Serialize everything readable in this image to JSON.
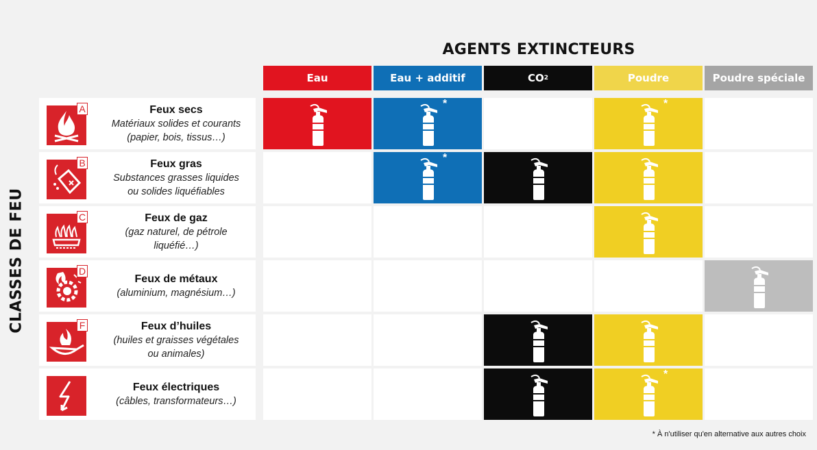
{
  "title": "AGENTS EXTINCTEURS",
  "side_label": "CLASSES DE FEU",
  "agents": [
    {
      "label": "Eau",
      "color": "#e1141f"
    },
    {
      "label": "Eau + additif",
      "color": "#0f6fb6"
    },
    {
      "label": "CO",
      "sub": "2",
      "color": "#0c0c0c"
    },
    {
      "label": "Poudre",
      "color": "#f0d54a"
    },
    {
      "label": "Poudre spéciale",
      "color": "#a5a5a5"
    }
  ],
  "classes": [
    {
      "letter": "A",
      "name": "Feux secs",
      "desc1": "Matériaux solides et courants",
      "desc2": "(papier, bois, tissus…)",
      "icon": "fire-icon",
      "cells": [
        {
          "on": true,
          "color": "#e1141f"
        },
        {
          "on": true,
          "color": "#0f6fb6",
          "note": "*"
        },
        {
          "on": false
        },
        {
          "on": true,
          "color": "#f0cf23",
          "note": "*"
        },
        {
          "on": false
        }
      ]
    },
    {
      "letter": "B",
      "name": "Feux gras",
      "desc1": "Substances grasses liquides",
      "desc2": "ou solides liquéfiables",
      "icon": "fuel-can-icon",
      "cells": [
        {
          "on": false
        },
        {
          "on": true,
          "color": "#0f6fb6",
          "note": "*"
        },
        {
          "on": true,
          "color": "#0c0c0c"
        },
        {
          "on": true,
          "color": "#f0cf23"
        },
        {
          "on": false
        }
      ]
    },
    {
      "letter": "C",
      "name": "Feux de gaz",
      "desc1": "(gaz naturel, de pétrole",
      "desc2": "liquéfié…)",
      "icon": "gas-burner-icon",
      "cells": [
        {
          "on": false
        },
        {
          "on": false
        },
        {
          "on": false
        },
        {
          "on": true,
          "color": "#f0cf23"
        },
        {
          "on": false
        }
      ]
    },
    {
      "letter": "D",
      "name": "Feux de métaux",
      "desc1": "(aluminium, magnésium…)",
      "desc2": "",
      "icon": "metal-fire-icon",
      "cells": [
        {
          "on": false
        },
        {
          "on": false
        },
        {
          "on": false
        },
        {
          "on": false
        },
        {
          "on": true,
          "color": "#bdbdbd"
        }
      ]
    },
    {
      "letter": "F",
      "name": "Feux d’huiles",
      "desc1": "(huiles et graisses végétales",
      "desc2": "ou animales)",
      "icon": "frying-pan-icon",
      "cells": [
        {
          "on": false
        },
        {
          "on": false
        },
        {
          "on": true,
          "color": "#0c0c0c"
        },
        {
          "on": true,
          "color": "#f0cf23"
        },
        {
          "on": false
        }
      ]
    },
    {
      "letter": "",
      "name": "Feux électriques",
      "desc1": "(câbles, transformateurs…)",
      "desc2": "",
      "icon": "lightning-icon",
      "cells": [
        {
          "on": false
        },
        {
          "on": false
        },
        {
          "on": true,
          "color": "#0c0c0c"
        },
        {
          "on": true,
          "color": "#f0cf23",
          "note": "*"
        },
        {
          "on": false
        }
      ]
    }
  ],
  "footnote": "* À n'utiliser qu'en alternative aux autres choix"
}
